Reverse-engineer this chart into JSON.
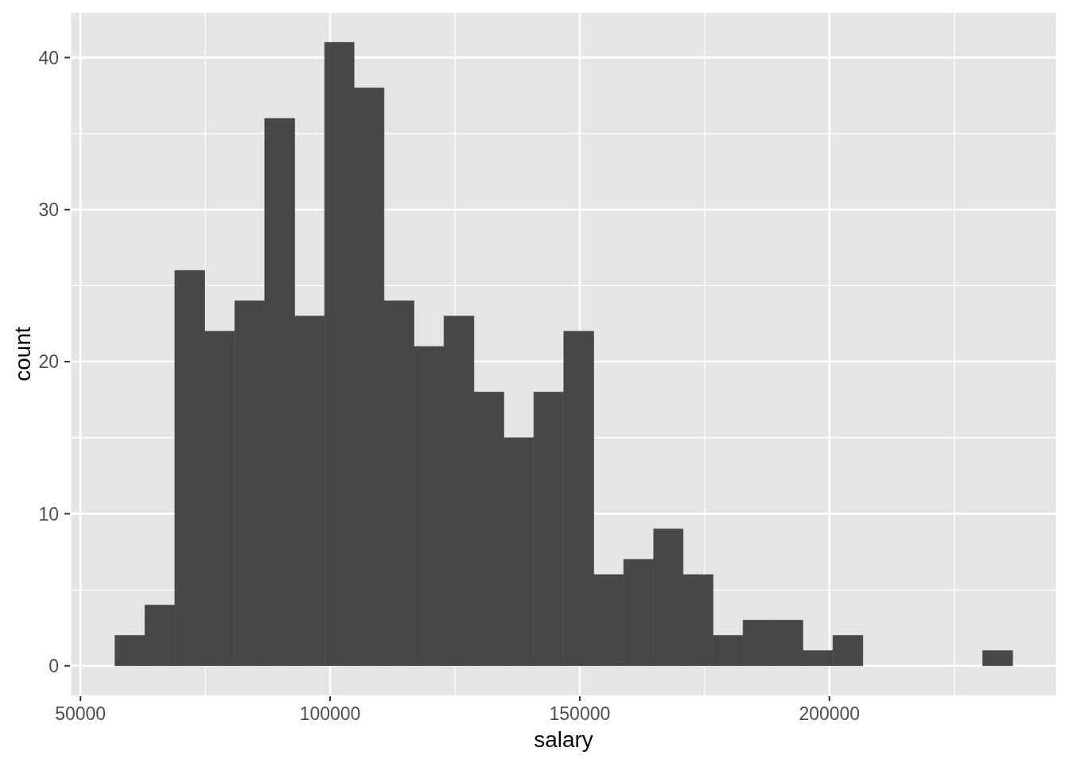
{
  "chart_data": {
    "type": "histogram",
    "xlabel": "salary",
    "ylabel": "count",
    "bins": [
      56900,
      62900,
      68900,
      74900,
      80900,
      86900,
      92900,
      98900,
      104800,
      110800,
      116800,
      122800,
      128800,
      134800,
      140800,
      146800,
      152800,
      158800,
      164800,
      170700,
      176700,
      182700,
      188700,
      194700,
      200700,
      206700,
      230700,
      236700
    ],
    "values": [
      2,
      4,
      26,
      22,
      24,
      36,
      23,
      41,
      38,
      24,
      21,
      23,
      18,
      15,
      18,
      22,
      6,
      7,
      9,
      6,
      2,
      3,
      3,
      1,
      2,
      0,
      1
    ],
    "color": "#474747",
    "xlim": [
      47900,
      245600
    ],
    "xticks": [
      50000,
      100000,
      150000,
      200000
    ],
    "ylim": [
      -2,
      43
    ],
    "yticks": [
      0,
      10,
      20,
      30,
      40
    ],
    "grid": true
  }
}
